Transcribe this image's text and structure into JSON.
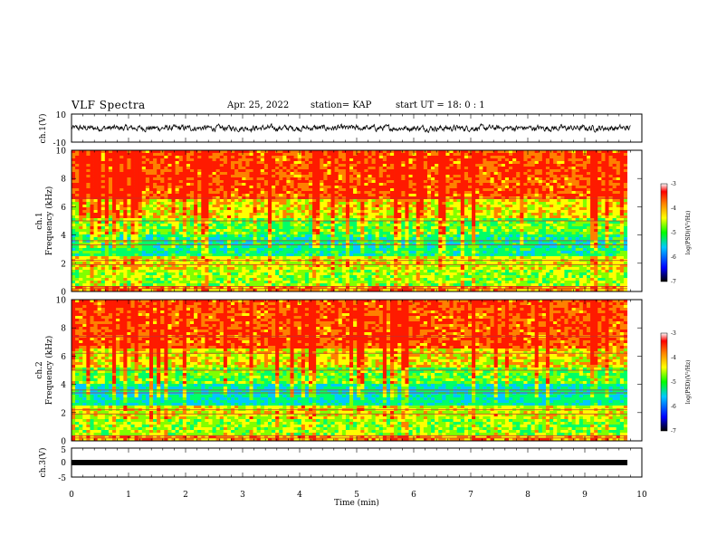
{
  "header": {
    "title": "VLF Spectra",
    "date": "Apr. 25, 2022",
    "station": "station= KAP",
    "start": "start UT = 18: 0 : 1"
  },
  "chart_data": [
    {
      "type": "line",
      "panel": "ch1-waveform",
      "ylabel": "ch.1(V)",
      "ylim": [
        -10,
        10
      ],
      "ytick_labels": [
        "10",
        "-10"
      ],
      "xlim": [
        0,
        10
      ],
      "description_values_approx": {
        "mean": 0,
        "range": [
          -3,
          3
        ]
      }
    },
    {
      "type": "heatmap",
      "panel": "ch1-spectrogram",
      "ylabel": "ch.1\nFrequency (kHz)",
      "ylim": [
        0,
        10
      ],
      "ytick_labels": [
        "0",
        "2",
        "4",
        "6",
        "8",
        "10"
      ],
      "xlim": [
        0,
        10
      ],
      "colorbar": {
        "label": "log(PSD)(V²/Hz)",
        "range": [
          -7,
          -3
        ],
        "tick_labels": [
          "-3",
          "-4",
          "-5",
          "-6",
          "-7"
        ]
      }
    },
    {
      "type": "heatmap",
      "panel": "ch2-spectrogram",
      "ylabel": "ch.2\nFrequency (kHz)",
      "ylim": [
        0,
        10
      ],
      "ytick_labels": [
        "0",
        "2",
        "4",
        "6",
        "8",
        "10"
      ],
      "xlim": [
        0,
        10
      ],
      "colorbar": {
        "label": "log(PSD)(V²/Hz)",
        "range": [
          -7,
          -3
        ],
        "tick_labels": [
          "-3",
          "-4",
          "-5",
          "-6",
          "-7"
        ]
      }
    },
    {
      "type": "line",
      "panel": "ch3-waveform",
      "ylabel": "ch.3(V)",
      "ylim": [
        -5,
        5
      ],
      "ytick_labels": [
        "5",
        "0",
        "-5"
      ],
      "xlim": [
        0,
        10
      ],
      "xlabel": "Time (min)",
      "xtick_labels": [
        "0",
        "1",
        "2",
        "3",
        "4",
        "5",
        "6",
        "7",
        "8",
        "9",
        "10"
      ],
      "series": [
        {
          "x": [
            0,
            9.8
          ],
          "y": [
            0,
            0
          ]
        }
      ]
    }
  ],
  "colors": {
    "scale": [
      "#000000",
      "#0000ff",
      "#00c8ff",
      "#00ff00",
      "#ffff00",
      "#ff8000",
      "#ff0000",
      "#ffffff"
    ]
  }
}
